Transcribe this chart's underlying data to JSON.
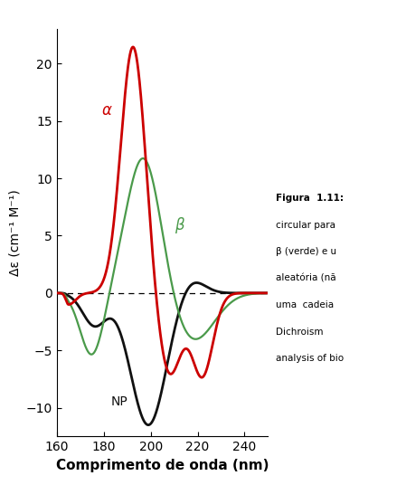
{
  "xlabel": "Comprimento de onda (nm)",
  "ylabel": "Δε (cm⁻¹ M⁻¹)",
  "xlim": [
    160,
    250
  ],
  "ylim": [
    -12.5,
    23
  ],
  "yticks": [
    -10,
    -5,
    0,
    5,
    10,
    15,
    20
  ],
  "xticks": [
    160,
    180,
    200,
    220,
    240
  ],
  "background_color": "#ffffff",
  "alpha_color": "#cc0000",
  "beta_color": "#4a9a4a",
  "np_color": "#111111",
  "alpha_label": "α",
  "beta_label": "β",
  "np_label": "NP"
}
